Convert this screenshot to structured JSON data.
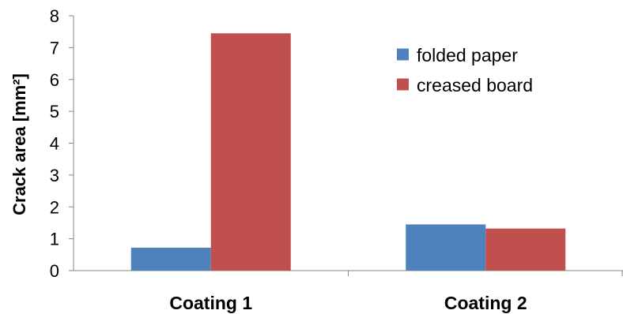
{
  "chart_data": {
    "type": "bar",
    "title": "",
    "xlabel": "",
    "ylabel": "Crack area [mm²]",
    "ylim": [
      0,
      8
    ],
    "yticks": [
      "0",
      "1",
      "2",
      "3",
      "4",
      "5",
      "6",
      "7",
      "8"
    ],
    "categories": [
      "Coating 1",
      "Coating 2"
    ],
    "series": [
      {
        "name": "folded paper",
        "color": "#4f81bd",
        "values": [
          0.72,
          1.45
        ]
      },
      {
        "name": "creased board",
        "color": "#c0504d",
        "values": [
          7.45,
          1.32
        ]
      }
    ],
    "grid": false,
    "legend_position": "top-right"
  }
}
